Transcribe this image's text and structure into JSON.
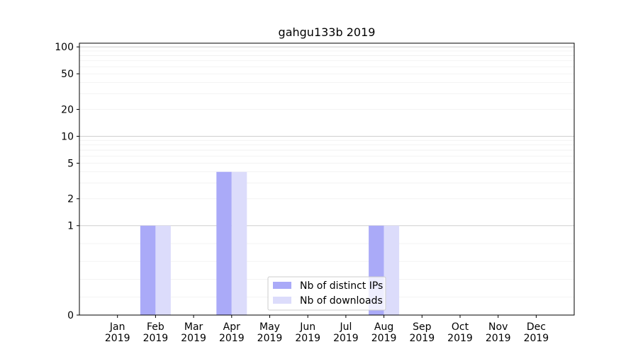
{
  "chart_data": {
    "type": "bar",
    "title": "gahgu133b 2019",
    "categories": [
      "Jan\n2019",
      "Feb\n2019",
      "Mar\n2019",
      "Apr\n2019",
      "May\n2019",
      "Jun\n2019",
      "Jul\n2019",
      "Aug\n2019",
      "Sep\n2019",
      "Oct\n2019",
      "Nov\n2019",
      "Dec\n2019"
    ],
    "yscale": "symlog",
    "ylim": [
      0,
      110
    ],
    "yticks": [
      0,
      1,
      2,
      5,
      10,
      20,
      50,
      100
    ],
    "series": [
      {
        "name": "Nb of distinct IPs",
        "color": "#aaaaf8",
        "values": [
          0,
          1,
          0,
          4,
          0,
          0,
          0,
          1,
          0,
          0,
          0,
          0
        ]
      },
      {
        "name": "Nb of downloads",
        "color": "#dcdcfb",
        "values": [
          0,
          1,
          0,
          4,
          0,
          0,
          0,
          1,
          0,
          0,
          0,
          0
        ]
      }
    ],
    "legend_position": "lower-center",
    "grid": true
  }
}
